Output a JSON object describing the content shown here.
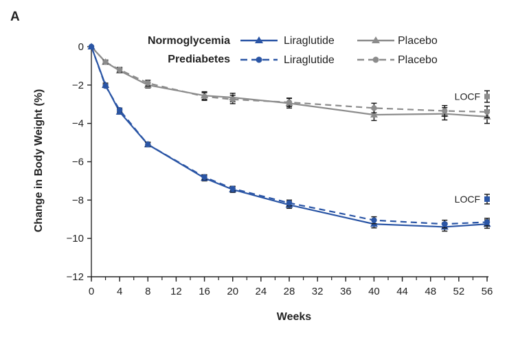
{
  "chart_data": {
    "type": "line",
    "panel_label": "A",
    "title": "",
    "xlabel": "Weeks",
    "ylabel": "Change in Body Weight (%)",
    "xlim": [
      0,
      56
    ],
    "ylim": [
      -12,
      0
    ],
    "xticks": [
      0,
      4,
      8,
      12,
      16,
      20,
      24,
      28,
      32,
      36,
      40,
      44,
      48,
      52,
      56
    ],
    "yticks": [
      0,
      -2,
      -4,
      -6,
      -8,
      -10,
      -12
    ],
    "grid": false,
    "legend": {
      "placement": "top-right",
      "groups": [
        "Normoglycemia",
        "Prediabetes"
      ],
      "entries": [
        {
          "group": "Normoglycemia",
          "label": "Liraglutide",
          "series": 0
        },
        {
          "group": "Normoglycemia",
          "label": "Placebo",
          "series": 1
        },
        {
          "group": "Prediabetes",
          "label": "Liraglutide",
          "series": 2
        },
        {
          "group": "Prediabetes",
          "label": "Placebo",
          "series": 3
        }
      ]
    },
    "series": [
      {
        "name": "Normoglycemia – Liraglutide",
        "color": "#2a55a5",
        "line": "solid",
        "marker": "triangle",
        "x": [
          0,
          2,
          4,
          8,
          16,
          20,
          28,
          40,
          50,
          56
        ],
        "values": [
          0,
          -2.0,
          -3.4,
          -5.1,
          -6.85,
          -7.45,
          -8.25,
          -9.25,
          -9.4,
          -9.25
        ],
        "err": [
          0,
          0.1,
          0.12,
          0.12,
          0.15,
          0.15,
          0.18,
          0.2,
          0.22,
          0.22
        ]
      },
      {
        "name": "Normoglycemia – Placebo",
        "color": "#8c8c8c",
        "line": "solid",
        "marker": "triangle",
        "x": [
          0,
          2,
          4,
          8,
          16,
          20,
          28,
          40,
          50,
          56
        ],
        "values": [
          0,
          -0.8,
          -1.25,
          -2.0,
          -2.55,
          -2.65,
          -2.95,
          -3.55,
          -3.5,
          -3.65
        ],
        "err": [
          0,
          0.1,
          0.12,
          0.15,
          0.2,
          0.22,
          0.25,
          0.3,
          0.32,
          0.35
        ]
      },
      {
        "name": "Prediabetes – Liraglutide",
        "color": "#2a55a5",
        "line": "dashed",
        "marker": "circle",
        "x": [
          0,
          2,
          4,
          8,
          16,
          20,
          28,
          40,
          50,
          56
        ],
        "values": [
          0,
          -2.05,
          -3.3,
          -5.1,
          -6.8,
          -7.4,
          -8.15,
          -9.05,
          -9.25,
          -9.15
        ],
        "err": [
          0,
          0.08,
          0.1,
          0.1,
          0.12,
          0.12,
          0.15,
          0.18,
          0.2,
          0.2
        ]
      },
      {
        "name": "Prediabetes – Placebo",
        "color": "#8c8c8c",
        "line": "dashed",
        "marker": "circle",
        "x": [
          0,
          2,
          4,
          8,
          16,
          20,
          28,
          40,
          50,
          56
        ],
        "values": [
          0,
          -0.8,
          -1.2,
          -1.9,
          -2.6,
          -2.75,
          -2.9,
          -3.2,
          -3.35,
          -3.4
        ],
        "err": [
          0,
          0.1,
          0.12,
          0.15,
          0.2,
          0.22,
          0.22,
          0.25,
          0.28,
          0.3
        ]
      }
    ],
    "annotations": [
      {
        "text": "LOCF",
        "x": 56,
        "y": -2.6,
        "color": "#8c8c8c",
        "marker_y": -2.6,
        "err": 0.3
      },
      {
        "text": "LOCF",
        "x": 56,
        "y": -7.95,
        "color": "#2a55a5",
        "marker_y": -7.95,
        "err": 0.25
      }
    ]
  }
}
